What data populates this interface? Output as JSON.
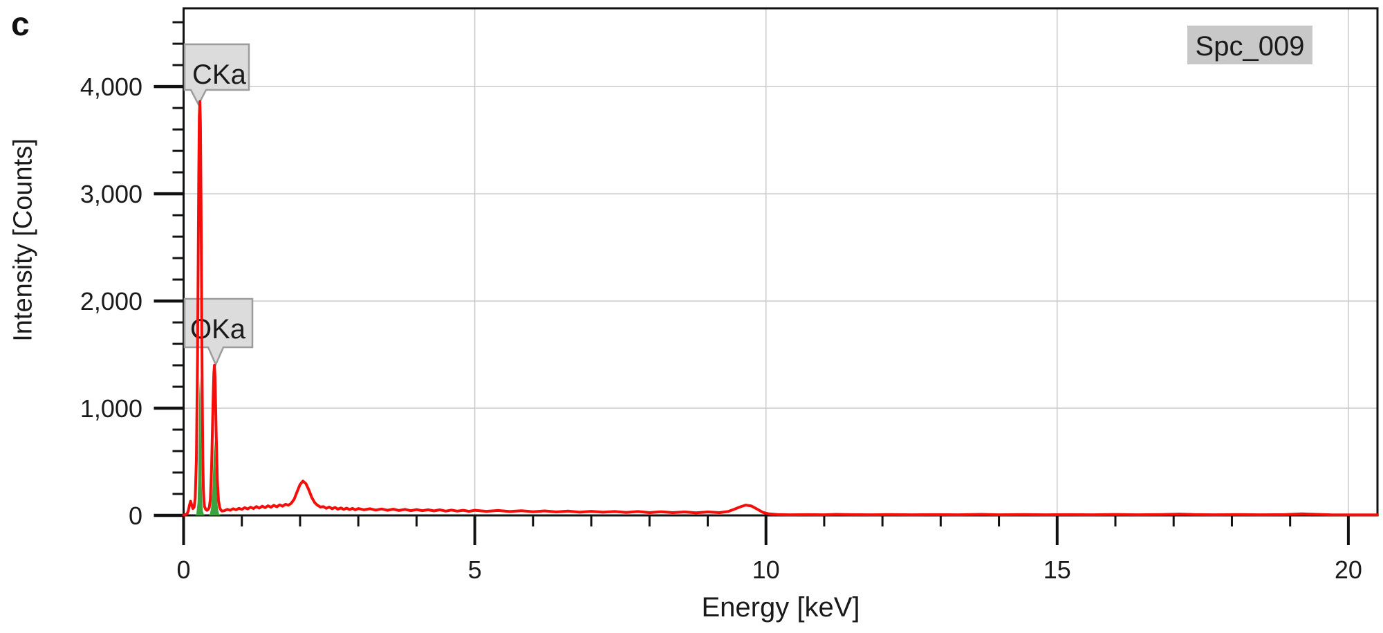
{
  "panel": {
    "letter": "c"
  },
  "badge": {
    "label": "Spc_009"
  },
  "colors": {
    "spectrum_red": "#f50d0a",
    "fit_green": "#3ba33d",
    "gridline": "#c9c9c9",
    "axis": "#111111",
    "callout_fill": "#dcdcdc",
    "callout_border": "#9c9c9c",
    "badge_fill": "#c8c8c8"
  },
  "chart_data": {
    "type": "line",
    "title": "Spc_009",
    "xlabel": "Energy [keV]",
    "ylabel": "Intensity [Counts]",
    "xlim": [
      0,
      20.5
    ],
    "ylim": [
      0,
      4730
    ],
    "grid": {
      "x_values": [
        5,
        10,
        15,
        20
      ],
      "y_values": [
        1000,
        2000,
        3000,
        4000
      ]
    },
    "x_major_ticks": {
      "values": [
        0,
        5,
        10,
        15,
        20
      ],
      "labels": [
        "0",
        "5",
        "10",
        "15",
        "20"
      ]
    },
    "x_minor_ticks": [
      1,
      2,
      3,
      4,
      6,
      7,
      8,
      9,
      11,
      12,
      13,
      14,
      16,
      17,
      18,
      19
    ],
    "y_major_ticks": {
      "values": [
        0,
        1000,
        2000,
        3000,
        4000
      ],
      "labels": [
        "0",
        "1,000",
        "2,000",
        "3,000",
        "4,000"
      ]
    },
    "y_minor_ticks": [
      200,
      400,
      600,
      800,
      1200,
      1400,
      1600,
      1800,
      2200,
      2400,
      2600,
      2800,
      3200,
      3400,
      3600,
      3800,
      4200,
      4400,
      4600
    ],
    "annotations": [
      {
        "label": "CKa",
        "x": 0.28,
        "y": 3860
      },
      {
        "label": "OKa",
        "x": 0.53,
        "y": 1400
      }
    ],
    "series": [
      {
        "name": "CKa_fit",
        "type": "area",
        "color": "#3ba33d",
        "points": [
          [
            0.2,
            0
          ],
          [
            0.22,
            15
          ],
          [
            0.24,
            120
          ],
          [
            0.25,
            330
          ],
          [
            0.26,
            720
          ],
          [
            0.27,
            1130
          ],
          [
            0.28,
            1300
          ],
          [
            0.29,
            1130
          ],
          [
            0.3,
            720
          ],
          [
            0.31,
            330
          ],
          [
            0.32,
            120
          ],
          [
            0.33,
            40
          ],
          [
            0.35,
            8
          ],
          [
            0.36,
            0
          ]
        ]
      },
      {
        "name": "OKa_fit",
        "type": "area",
        "color": "#3ba33d",
        "points": [
          [
            0.43,
            0
          ],
          [
            0.45,
            12
          ],
          [
            0.47,
            60
          ],
          [
            0.49,
            200
          ],
          [
            0.51,
            460
          ],
          [
            0.52,
            600
          ],
          [
            0.53,
            700
          ],
          [
            0.54,
            600
          ],
          [
            0.55,
            460
          ],
          [
            0.57,
            200
          ],
          [
            0.59,
            60
          ],
          [
            0.61,
            12
          ],
          [
            0.63,
            0
          ]
        ]
      },
      {
        "name": "spectrum",
        "type": "line",
        "color": "#f50d0a",
        "points": [
          [
            0,
            3
          ],
          [
            0.03,
            6
          ],
          [
            0.06,
            16
          ],
          [
            0.08,
            40
          ],
          [
            0.1,
            92
          ],
          [
            0.12,
            132
          ],
          [
            0.14,
            98
          ],
          [
            0.16,
            64
          ],
          [
            0.18,
            76
          ],
          [
            0.2,
            160
          ],
          [
            0.22,
            520
          ],
          [
            0.24,
            1500
          ],
          [
            0.25,
            2350
          ],
          [
            0.26,
            3150
          ],
          [
            0.27,
            3720
          ],
          [
            0.28,
            3860
          ],
          [
            0.29,
            3640
          ],
          [
            0.3,
            2880
          ],
          [
            0.31,
            1980
          ],
          [
            0.32,
            1120
          ],
          [
            0.33,
            540
          ],
          [
            0.34,
            250
          ],
          [
            0.35,
            130
          ],
          [
            0.36,
            82
          ],
          [
            0.38,
            56
          ],
          [
            0.4,
            48
          ],
          [
            0.42,
            54
          ],
          [
            0.44,
            72
          ],
          [
            0.46,
            150
          ],
          [
            0.48,
            430
          ],
          [
            0.5,
            910
          ],
          [
            0.51,
            1160
          ],
          [
            0.52,
            1330
          ],
          [
            0.53,
            1400
          ],
          [
            0.54,
            1285
          ],
          [
            0.55,
            1040
          ],
          [
            0.56,
            750
          ],
          [
            0.58,
            330
          ],
          [
            0.6,
            140
          ],
          [
            0.62,
            72
          ],
          [
            0.64,
            50
          ],
          [
            0.66,
            40
          ],
          [
            0.7,
            44
          ],
          [
            0.75,
            56
          ],
          [
            0.8,
            48
          ],
          [
            0.85,
            62
          ],
          [
            0.9,
            52
          ],
          [
            0.95,
            66
          ],
          [
            1.0,
            56
          ],
          [
            1.05,
            72
          ],
          [
            1.1,
            60
          ],
          [
            1.15,
            76
          ],
          [
            1.2,
            64
          ],
          [
            1.25,
            82
          ],
          [
            1.3,
            68
          ],
          [
            1.35,
            86
          ],
          [
            1.4,
            72
          ],
          [
            1.45,
            90
          ],
          [
            1.5,
            76
          ],
          [
            1.55,
            94
          ],
          [
            1.6,
            80
          ],
          [
            1.65,
            98
          ],
          [
            1.7,
            86
          ],
          [
            1.75,
            104
          ],
          [
            1.8,
            94
          ],
          [
            1.85,
            114
          ],
          [
            1.9,
            152
          ],
          [
            1.95,
            222
          ],
          [
            2.0,
            288
          ],
          [
            2.05,
            320
          ],
          [
            2.1,
            296
          ],
          [
            2.15,
            238
          ],
          [
            2.2,
            168
          ],
          [
            2.25,
            120
          ],
          [
            2.3,
            94
          ],
          [
            2.35,
            78
          ],
          [
            2.4,
            82
          ],
          [
            2.45,
            66
          ],
          [
            2.5,
            78
          ],
          [
            2.55,
            62
          ],
          [
            2.6,
            74
          ],
          [
            2.65,
            58
          ],
          [
            2.7,
            70
          ],
          [
            2.75,
            56
          ],
          [
            2.8,
            68
          ],
          [
            2.85,
            54
          ],
          [
            2.9,
            66
          ],
          [
            2.95,
            52
          ],
          [
            3.0,
            64
          ],
          [
            3.1,
            52
          ],
          [
            3.2,
            62
          ],
          [
            3.3,
            50
          ],
          [
            3.4,
            60
          ],
          [
            3.5,
            48
          ],
          [
            3.6,
            58
          ],
          [
            3.7,
            46
          ],
          [
            3.8,
            56
          ],
          [
            3.9,
            44
          ],
          [
            4.0,
            54
          ],
          [
            4.1,
            44
          ],
          [
            4.2,
            52
          ],
          [
            4.3,
            42
          ],
          [
            4.4,
            52
          ],
          [
            4.5,
            40
          ],
          [
            4.6,
            50
          ],
          [
            4.7,
            40
          ],
          [
            4.8,
            48
          ],
          [
            4.9,
            38
          ],
          [
            5.0,
            48
          ],
          [
            5.2,
            38
          ],
          [
            5.4,
            46
          ],
          [
            5.6,
            36
          ],
          [
            5.8,
            44
          ],
          [
            6.0,
            34
          ],
          [
            6.2,
            42
          ],
          [
            6.4,
            32
          ],
          [
            6.6,
            40
          ],
          [
            6.8,
            30
          ],
          [
            7.0,
            38
          ],
          [
            7.2,
            30
          ],
          [
            7.4,
            36
          ],
          [
            7.6,
            28
          ],
          [
            7.8,
            36
          ],
          [
            8.0,
            26
          ],
          [
            8.2,
            34
          ],
          [
            8.4,
            26
          ],
          [
            8.6,
            32
          ],
          [
            8.8,
            24
          ],
          [
            9.0,
            32
          ],
          [
            9.2,
            26
          ],
          [
            9.35,
            36
          ],
          [
            9.45,
            56
          ],
          [
            9.55,
            78
          ],
          [
            9.65,
            96
          ],
          [
            9.75,
            88
          ],
          [
            9.85,
            58
          ],
          [
            9.95,
            28
          ],
          [
            10.05,
            14
          ],
          [
            10.2,
            8
          ],
          [
            10.4,
            6
          ],
          [
            10.7,
            7
          ],
          [
            11.0,
            6
          ],
          [
            11.2,
            10
          ],
          [
            11.45,
            7
          ],
          [
            11.8,
            6
          ],
          [
            12.1,
            8
          ],
          [
            12.5,
            6
          ],
          [
            12.9,
            7
          ],
          [
            13.3,
            6
          ],
          [
            13.7,
            10
          ],
          [
            14.0,
            6
          ],
          [
            14.4,
            8
          ],
          [
            14.8,
            6
          ],
          [
            15.2,
            7
          ],
          [
            15.6,
            6
          ],
          [
            16.0,
            9
          ],
          [
            16.4,
            6
          ],
          [
            16.8,
            8
          ],
          [
            17.1,
            12
          ],
          [
            17.35,
            8
          ],
          [
            17.7,
            6
          ],
          [
            18.1,
            8
          ],
          [
            18.5,
            6
          ],
          [
            18.9,
            7
          ],
          [
            19.2,
            14
          ],
          [
            19.45,
            10
          ],
          [
            19.7,
            6
          ],
          [
            20.1,
            5
          ],
          [
            20.5,
            5
          ]
        ]
      }
    ]
  }
}
